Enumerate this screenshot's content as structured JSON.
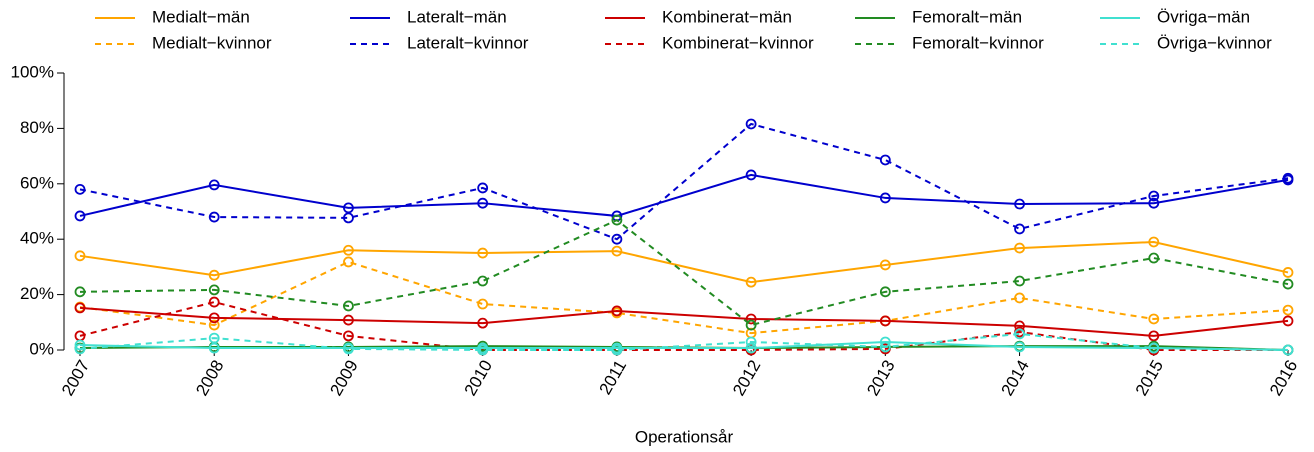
{
  "chart_data": {
    "type": "line",
    "x_label": "Operationsår",
    "x": [
      2007,
      2008,
      2009,
      2010,
      2011,
      2012,
      2013,
      2014,
      2015,
      2016
    ],
    "xlim": [
      2007,
      2016
    ],
    "xticks": [
      2007,
      2008,
      2009,
      2010,
      2011,
      2012,
      2013,
      2014,
      2015,
      2016
    ],
    "ylim": [
      0,
      100
    ],
    "yticks": [
      {
        "value": 0,
        "label": "0%"
      },
      {
        "value": 20,
        "label": "20%"
      },
      {
        "value": 40,
        "label": "40%"
      },
      {
        "value": 60,
        "label": "60%"
      },
      {
        "value": 80,
        "label": "80%"
      },
      {
        "value": 100,
        "label": "100%"
      }
    ],
    "legend": "top",
    "series": [
      {
        "name": "Medialt−män",
        "color": "#FFA500",
        "linestyle": "solid",
        "values": [
          34,
          27,
          36,
          35,
          35.7,
          24.5,
          30.7,
          36.8,
          39,
          28
        ]
      },
      {
        "name": "Medialt−kvinnor",
        "color": "#FFA500",
        "linestyle": "dashed",
        "values": [
          15.5,
          9,
          31.8,
          16.6,
          13.4,
          6.1,
          10.5,
          18.8,
          11.2,
          14.4
        ]
      },
      {
        "name": "Lateralt−män",
        "color": "#0000CD",
        "linestyle": "solid",
        "values": [
          48.4,
          59.6,
          51.3,
          53,
          48.4,
          63.2,
          54.9,
          52.7,
          53,
          61.4
        ]
      },
      {
        "name": "Lateralt−kvinnor",
        "color": "#0000CD",
        "linestyle": "dashed",
        "values": [
          58,
          48,
          47.7,
          58.5,
          40,
          81.6,
          68.6,
          43.7,
          55.6,
          62
        ]
      },
      {
        "name": "Kombinerat−män",
        "color": "#CC0000",
        "linestyle": "solid",
        "values": [
          15.2,
          11.6,
          10.8,
          9.7,
          14.1,
          11.2,
          10.5,
          8.7,
          5.1,
          10.5
        ]
      },
      {
        "name": "Kombinerat−kvinnor",
        "color": "#CC0000",
        "linestyle": "dashed",
        "values": [
          5.1,
          17.3,
          5.1,
          0,
          0,
          0,
          0.4,
          6.5,
          0,
          0
        ]
      },
      {
        "name": "Femoralt−män",
        "color": "#228B22",
        "linestyle": "solid",
        "values": [
          0.7,
          1.1,
          1.1,
          1.4,
          1.1,
          0.7,
          1.1,
          1.4,
          1.4,
          0
        ]
      },
      {
        "name": "Femoralt−kvinnor",
        "color": "#228B22",
        "linestyle": "dashed",
        "values": [
          21,
          21.7,
          15.9,
          24.9,
          46.9,
          9,
          21,
          24.9,
          33.2,
          23.8
        ]
      },
      {
        "name": "Övriga−män",
        "color": "#40E0D0",
        "linestyle": "solid",
        "values": [
          1.8,
          0.7,
          0.7,
          0.7,
          0.7,
          0.7,
          2.9,
          1.1,
          0.7,
          0
        ]
      },
      {
        "name": "Övriga−kvinnor",
        "color": "#40E0D0",
        "linestyle": "dashed",
        "values": [
          0.4,
          4.3,
          0.4,
          0,
          0,
          2.9,
          1.1,
          5.8,
          0.7,
          0
        ]
      }
    ]
  }
}
